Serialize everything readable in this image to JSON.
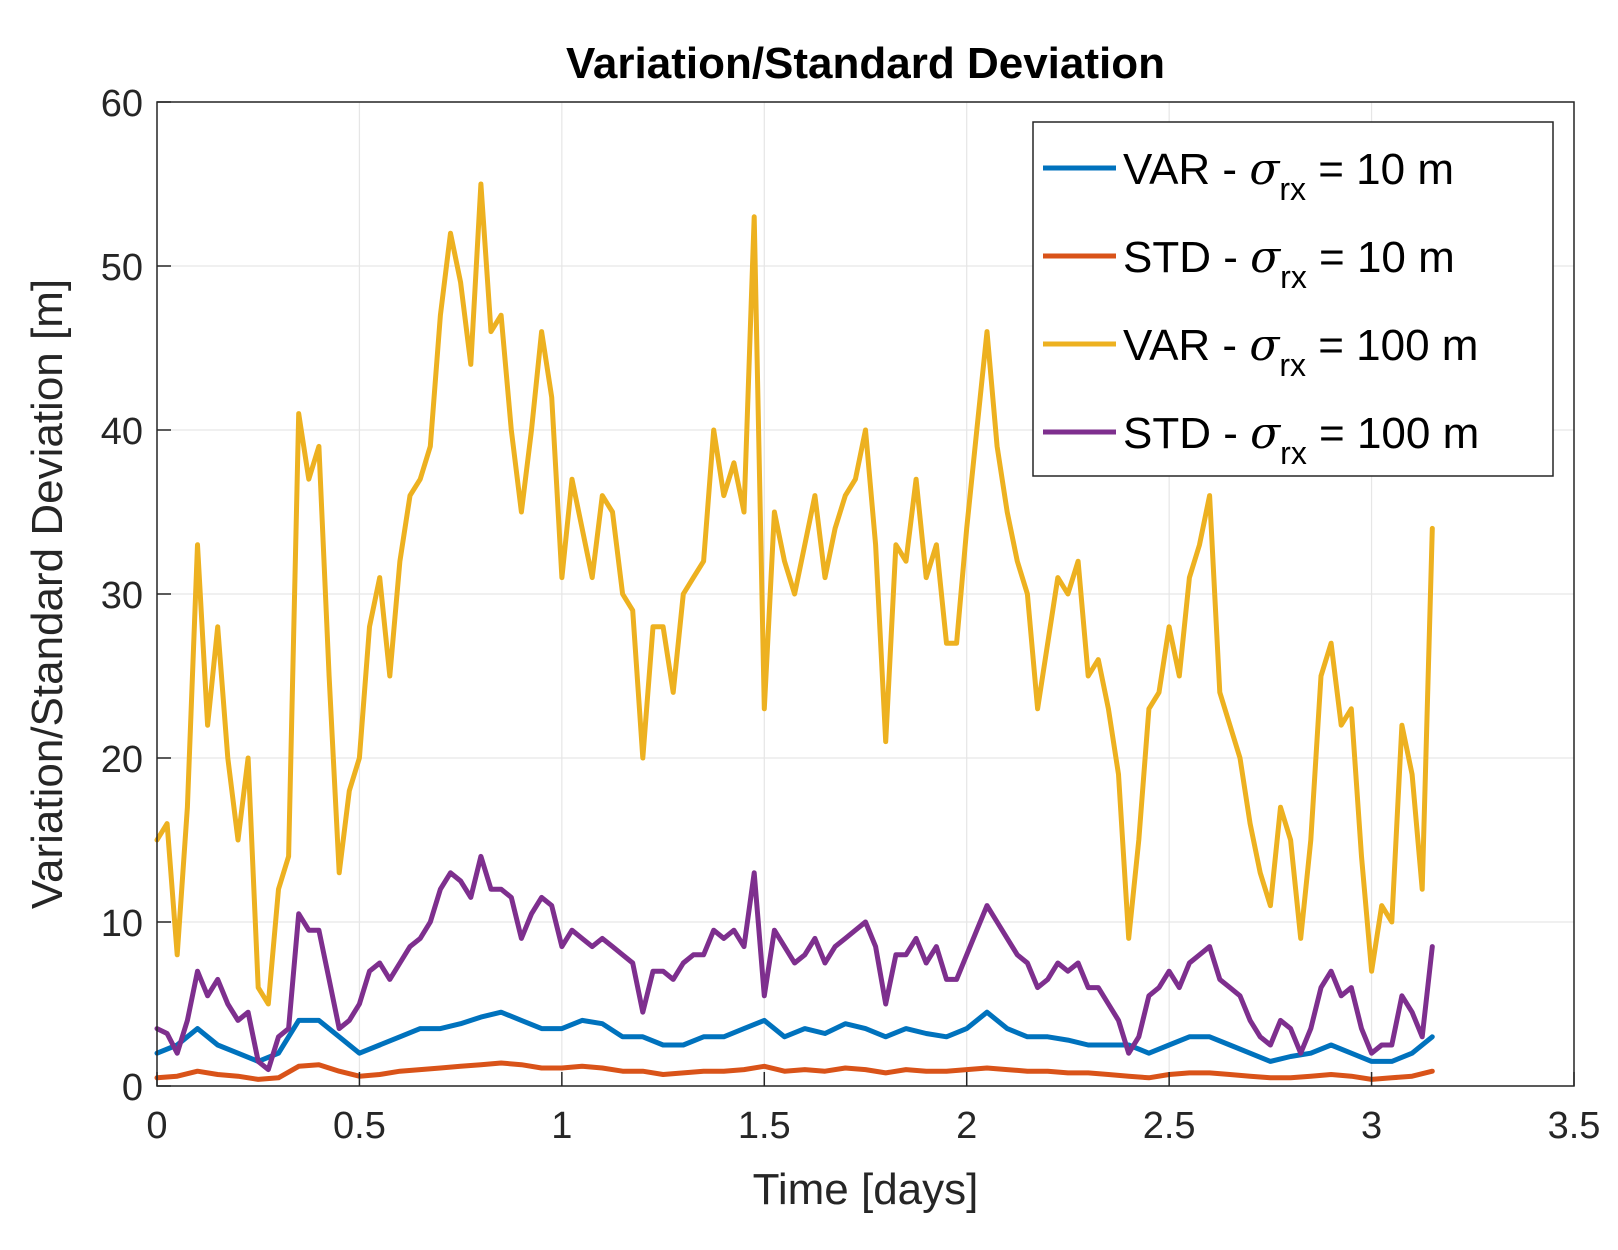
{
  "chart_data": {
    "type": "line",
    "title": "Variation/Standard Deviation",
    "xlabel": "Time [days]",
    "ylabel": "Variation/Standard Deviation [m]",
    "xlim": [
      0,
      3.5
    ],
    "ylim": [
      0,
      60
    ],
    "xticks": [
      "0",
      "0.5",
      "1",
      "1.5",
      "2",
      "2.5",
      "3",
      "3.5"
    ],
    "yticks": [
      "0",
      "10",
      "20",
      "30",
      "40",
      "50",
      "60"
    ],
    "grid": true,
    "legend_position": "top-right",
    "series": [
      {
        "name": "VAR - σrx = 10 m",
        "legend": {
          "prefix": "VAR - ",
          "symbol": "σ",
          "sub": "rx",
          "suffix": " = 10 m"
        },
        "color": "#0072BD",
        "x": [
          0,
          0.05,
          0.1,
          0.15,
          0.2,
          0.25,
          0.3,
          0.35,
          0.4,
          0.45,
          0.5,
          0.55,
          0.6,
          0.65,
          0.7,
          0.75,
          0.8,
          0.85,
          0.9,
          0.95,
          1.0,
          1.05,
          1.1,
          1.15,
          1.2,
          1.25,
          1.3,
          1.35,
          1.4,
          1.45,
          1.5,
          1.55,
          1.6,
          1.65,
          1.7,
          1.75,
          1.8,
          1.85,
          1.9,
          1.95,
          2.0,
          2.05,
          2.1,
          2.15,
          2.2,
          2.25,
          2.3,
          2.35,
          2.4,
          2.45,
          2.5,
          2.55,
          2.6,
          2.65,
          2.7,
          2.75,
          2.8,
          2.85,
          2.9,
          2.95,
          3.0,
          3.05,
          3.1,
          3.15
        ],
        "values": [
          2.0,
          2.5,
          3.5,
          2.5,
          2.0,
          1.5,
          2.0,
          4.0,
          4.0,
          3.0,
          2.0,
          2.5,
          3.0,
          3.5,
          3.5,
          3.8,
          4.2,
          4.5,
          4.0,
          3.5,
          3.5,
          4.0,
          3.8,
          3.0,
          3.0,
          2.5,
          2.5,
          3.0,
          3.0,
          3.5,
          4.0,
          3.0,
          3.5,
          3.2,
          3.8,
          3.5,
          3.0,
          3.5,
          3.2,
          3.0,
          3.5,
          4.5,
          3.5,
          3.0,
          3.0,
          2.8,
          2.5,
          2.5,
          2.5,
          2.0,
          2.5,
          3.0,
          3.0,
          2.5,
          2.0,
          1.5,
          1.8,
          2.0,
          2.5,
          2.0,
          1.5,
          1.5,
          2.0,
          3.0
        ]
      },
      {
        "name": "STD - σrx = 10 m",
        "legend": {
          "prefix": "STD - ",
          "symbol": "σ",
          "sub": "rx",
          "suffix": " = 10 m"
        },
        "color": "#D95319",
        "x": [
          0,
          0.05,
          0.1,
          0.15,
          0.2,
          0.25,
          0.3,
          0.35,
          0.4,
          0.45,
          0.5,
          0.55,
          0.6,
          0.65,
          0.7,
          0.75,
          0.8,
          0.85,
          0.9,
          0.95,
          1.0,
          1.05,
          1.1,
          1.15,
          1.2,
          1.25,
          1.3,
          1.35,
          1.4,
          1.45,
          1.5,
          1.55,
          1.6,
          1.65,
          1.7,
          1.75,
          1.8,
          1.85,
          1.9,
          1.95,
          2.0,
          2.05,
          2.1,
          2.15,
          2.2,
          2.25,
          2.3,
          2.35,
          2.4,
          2.45,
          2.5,
          2.55,
          2.6,
          2.65,
          2.7,
          2.75,
          2.8,
          2.85,
          2.9,
          2.95,
          3.0,
          3.05,
          3.1,
          3.15
        ],
        "values": [
          0.5,
          0.6,
          0.9,
          0.7,
          0.6,
          0.4,
          0.5,
          1.2,
          1.3,
          0.9,
          0.6,
          0.7,
          0.9,
          1.0,
          1.1,
          1.2,
          1.3,
          1.4,
          1.3,
          1.1,
          1.1,
          1.2,
          1.1,
          0.9,
          0.9,
          0.7,
          0.8,
          0.9,
          0.9,
          1.0,
          1.2,
          0.9,
          1.0,
          0.9,
          1.1,
          1.0,
          0.8,
          1.0,
          0.9,
          0.9,
          1.0,
          1.1,
          1.0,
          0.9,
          0.9,
          0.8,
          0.8,
          0.7,
          0.6,
          0.5,
          0.7,
          0.8,
          0.8,
          0.7,
          0.6,
          0.5,
          0.5,
          0.6,
          0.7,
          0.6,
          0.4,
          0.5,
          0.6,
          0.9
        ]
      },
      {
        "name": "VAR - σrx = 100 m",
        "legend": {
          "prefix": "VAR - ",
          "symbol": "σ",
          "sub": "rx",
          "suffix": " = 100 m"
        },
        "color": "#EDB120",
        "x": [
          0,
          0.025,
          0.05,
          0.075,
          0.1,
          0.125,
          0.15,
          0.175,
          0.2,
          0.225,
          0.25,
          0.275,
          0.3,
          0.325,
          0.35,
          0.375,
          0.4,
          0.425,
          0.45,
          0.475,
          0.5,
          0.525,
          0.55,
          0.575,
          0.6,
          0.625,
          0.65,
          0.675,
          0.7,
          0.725,
          0.75,
          0.775,
          0.8,
          0.825,
          0.85,
          0.875,
          0.9,
          0.925,
          0.95,
          0.975,
          1.0,
          1.025,
          1.05,
          1.075,
          1.1,
          1.125,
          1.15,
          1.175,
          1.2,
          1.225,
          1.25,
          1.275,
          1.3,
          1.325,
          1.35,
          1.375,
          1.4,
          1.425,
          1.45,
          1.475,
          1.5,
          1.525,
          1.55,
          1.575,
          1.6,
          1.625,
          1.65,
          1.675,
          1.7,
          1.725,
          1.75,
          1.775,
          1.8,
          1.825,
          1.85,
          1.875,
          1.9,
          1.925,
          1.95,
          1.975,
          2.0,
          2.025,
          2.05,
          2.075,
          2.1,
          2.125,
          2.15,
          2.175,
          2.2,
          2.225,
          2.25,
          2.275,
          2.3,
          2.325,
          2.35,
          2.375,
          2.4,
          2.425,
          2.45,
          2.475,
          2.5,
          2.525,
          2.55,
          2.575,
          2.6,
          2.625,
          2.65,
          2.675,
          2.7,
          2.725,
          2.75,
          2.775,
          2.8,
          2.825,
          2.85,
          2.875,
          2.9,
          2.925,
          2.95,
          2.975,
          3.0,
          3.025,
          3.05,
          3.075,
          3.1,
          3.125,
          3.15
        ],
        "values": [
          15,
          16,
          8,
          17,
          33,
          22,
          28,
          20,
          15,
          20,
          6,
          5,
          12,
          14,
          41,
          37,
          39,
          25,
          13,
          18,
          20,
          28,
          31,
          25,
          32,
          36,
          37,
          39,
          47,
          52,
          49,
          44,
          55,
          46,
          47,
          40,
          35,
          40,
          46,
          42,
          31,
          37,
          34,
          31,
          36,
          35,
          30,
          29,
          20,
          28,
          28,
          24,
          30,
          31,
          32,
          40,
          36,
          38,
          35,
          53,
          23,
          35,
          32,
          30,
          33,
          36,
          31,
          34,
          36,
          37,
          40,
          33,
          21,
          33,
          32,
          37,
          31,
          33,
          27,
          27,
          34,
          40,
          46,
          39,
          35,
          32,
          30,
          23,
          27,
          31,
          30,
          32,
          25,
          26,
          23,
          19,
          9,
          15,
          23,
          24,
          28,
          25,
          31,
          33,
          36,
          24,
          22,
          20,
          16,
          13,
          11,
          17,
          15,
          9,
          15,
          25,
          27,
          22,
          23,
          14,
          7,
          11,
          10,
          22,
          19,
          12,
          34
        ]
      },
      {
        "name": "STD - σrx = 100 m",
        "legend": {
          "prefix": "STD - ",
          "symbol": "σ",
          "sub": "rx",
          "suffix": " = 100 m"
        },
        "color": "#7E2F8E",
        "x": [
          0,
          0.025,
          0.05,
          0.075,
          0.1,
          0.125,
          0.15,
          0.175,
          0.2,
          0.225,
          0.25,
          0.275,
          0.3,
          0.325,
          0.35,
          0.375,
          0.4,
          0.425,
          0.45,
          0.475,
          0.5,
          0.525,
          0.55,
          0.575,
          0.6,
          0.625,
          0.65,
          0.675,
          0.7,
          0.725,
          0.75,
          0.775,
          0.8,
          0.825,
          0.85,
          0.875,
          0.9,
          0.925,
          0.95,
          0.975,
          1.0,
          1.025,
          1.05,
          1.075,
          1.1,
          1.125,
          1.15,
          1.175,
          1.2,
          1.225,
          1.25,
          1.275,
          1.3,
          1.325,
          1.35,
          1.375,
          1.4,
          1.425,
          1.45,
          1.475,
          1.5,
          1.525,
          1.55,
          1.575,
          1.6,
          1.625,
          1.65,
          1.675,
          1.7,
          1.725,
          1.75,
          1.775,
          1.8,
          1.825,
          1.85,
          1.875,
          1.9,
          1.925,
          1.95,
          1.975,
          2.0,
          2.025,
          2.05,
          2.075,
          2.1,
          2.125,
          2.15,
          2.175,
          2.2,
          2.225,
          2.25,
          2.275,
          2.3,
          2.325,
          2.35,
          2.375,
          2.4,
          2.425,
          2.45,
          2.475,
          2.5,
          2.525,
          2.55,
          2.575,
          2.6,
          2.625,
          2.65,
          2.675,
          2.7,
          2.725,
          2.75,
          2.775,
          2.8,
          2.825,
          2.85,
          2.875,
          2.9,
          2.925,
          2.95,
          2.975,
          3.0,
          3.025,
          3.05,
          3.075,
          3.1,
          3.125,
          3.15
        ],
        "values": [
          3.5,
          3.2,
          2.0,
          4.0,
          7.0,
          5.5,
          6.5,
          5.0,
          4.0,
          4.5,
          1.5,
          1.0,
          3.0,
          3.5,
          10.5,
          9.5,
          9.5,
          6.5,
          3.5,
          4.0,
          5.0,
          7.0,
          7.5,
          6.5,
          7.5,
          8.5,
          9.0,
          10.0,
          12.0,
          13.0,
          12.5,
          11.5,
          14.0,
          12.0,
          12.0,
          11.5,
          9.0,
          10.5,
          11.5,
          11.0,
          8.5,
          9.5,
          9.0,
          8.5,
          9.0,
          8.5,
          8.0,
          7.5,
          4.5,
          7.0,
          7.0,
          6.5,
          7.5,
          8.0,
          8.0,
          9.5,
          9.0,
          9.5,
          8.5,
          13.0,
          5.5,
          9.5,
          8.5,
          7.5,
          8.0,
          9.0,
          7.5,
          8.5,
          9.0,
          9.5,
          10.0,
          8.5,
          5.0,
          8.0,
          8.0,
          9.0,
          7.5,
          8.5,
          6.5,
          6.5,
          8.0,
          9.5,
          11.0,
          10.0,
          9.0,
          8.0,
          7.5,
          6.0,
          6.5,
          7.5,
          7.0,
          7.5,
          6.0,
          6.0,
          5.0,
          4.0,
          2.0,
          3.0,
          5.5,
          6.0,
          7.0,
          6.0,
          7.5,
          8.0,
          8.5,
          6.5,
          6.0,
          5.5,
          4.0,
          3.0,
          2.5,
          4.0,
          3.5,
          2.0,
          3.5,
          6.0,
          7.0,
          5.5,
          6.0,
          3.5,
          2.0,
          2.5,
          2.5,
          5.5,
          4.5,
          3.0,
          8.5
        ]
      }
    ]
  }
}
